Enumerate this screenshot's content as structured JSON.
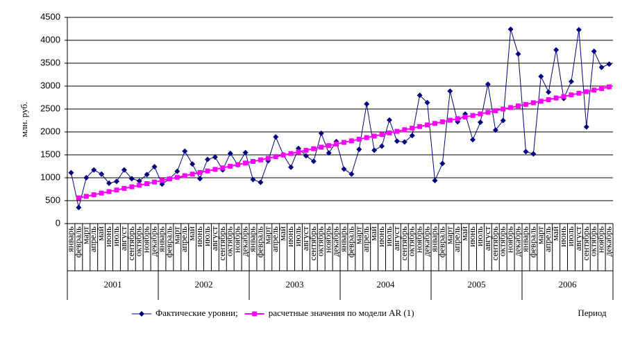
{
  "chart_data": {
    "type": "line",
    "y_label": "млн. руб.",
    "x_label": "Период",
    "categories": [
      "январь",
      "февраль",
      "март",
      "апрель",
      "май",
      "июнь",
      "июль",
      "август",
      "сентябрь",
      "октябрь",
      "ноябрь",
      "декабрь",
      "январь",
      "февраль",
      "март",
      "апрель",
      "май",
      "июнь",
      "июль",
      "август",
      "сентябрь",
      "октябрь",
      "ноябрь",
      "декабрь",
      "январь",
      "февраль",
      "март",
      "апрель",
      "май",
      "июнь",
      "июль",
      "август",
      "сентябрь",
      "октябрь",
      "ноябрь",
      "декабрь",
      "январь",
      "февраль",
      "март",
      "апрель",
      "май",
      "июнь",
      "июль",
      "август",
      "сентябрь",
      "октябрь",
      "ноябрь",
      "декабрь",
      "январь",
      "февраль",
      "март",
      "апрель",
      "май",
      "июнь",
      "июль",
      "август",
      "сентябрь",
      "октябрь",
      "ноябрь",
      "декабрь",
      "январь",
      "февраль",
      "март",
      "апрель",
      "май",
      "июнь",
      "июль",
      "август",
      "сентябрь",
      "октябрь",
      "ноябрь",
      "декабрь"
    ],
    "years": [
      "2001",
      "2002",
      "2003",
      "2004",
      "2005",
      "2006"
    ],
    "series": [
      {
        "name": "Фактические уровни;",
        "color": "#000080",
        "marker": "diamond",
        "values": [
          1110,
          350,
          1000,
          1170,
          1080,
          880,
          920,
          1170,
          980,
          930,
          1070,
          1240,
          860,
          980,
          1140,
          1580,
          1300,
          980,
          1400,
          1450,
          1170,
          1530,
          1280,
          1550,
          960,
          900,
          1370,
          1890,
          1500,
          1230,
          1640,
          1480,
          1360,
          1970,
          1540,
          1790,
          1190,
          1080,
          1620,
          2610,
          1600,
          1690,
          2260,
          1800,
          1780,
          1920,
          2800,
          2640,
          940,
          1310,
          2890,
          2220,
          2390,
          1830,
          2210,
          3040,
          2040,
          2250,
          4240,
          3700,
          1570,
          1520,
          3210,
          2870,
          3790,
          2730,
          3100,
          4230,
          2110,
          3760,
          3410,
          3480
        ]
      },
      {
        "name": "расчетные значения по модели AR (1)",
        "color": "#ff00ff",
        "marker": "square",
        "values": [
          null,
          560,
          595,
          629,
          664,
          698,
          733,
          768,
          802,
          837,
          871,
          906,
          941,
          975,
          1010,
          1044,
          1079,
          1114,
          1148,
          1183,
          1217,
          1252,
          1287,
          1321,
          1356,
          1390,
          1425,
          1460,
          1494,
          1529,
          1563,
          1598,
          1633,
          1667,
          1702,
          1736,
          1771,
          1806,
          1840,
          1875,
          1909,
          1944,
          1979,
          2013,
          2048,
          2082,
          2117,
          2152,
          2186,
          2221,
          2255,
          2290,
          2325,
          2359,
          2394,
          2428,
          2463,
          2498,
          2532,
          2567,
          2601,
          2636,
          2671,
          2705,
          2740,
          2774,
          2809,
          2844,
          2878,
          2913,
          2947,
          2982
        ]
      }
    ],
    "ylim": [
      0,
      4500
    ],
    "yticks": [
      0,
      500,
      1000,
      1500,
      2000,
      2500,
      3000,
      3500,
      4000,
      4500
    ],
    "grid": true
  }
}
